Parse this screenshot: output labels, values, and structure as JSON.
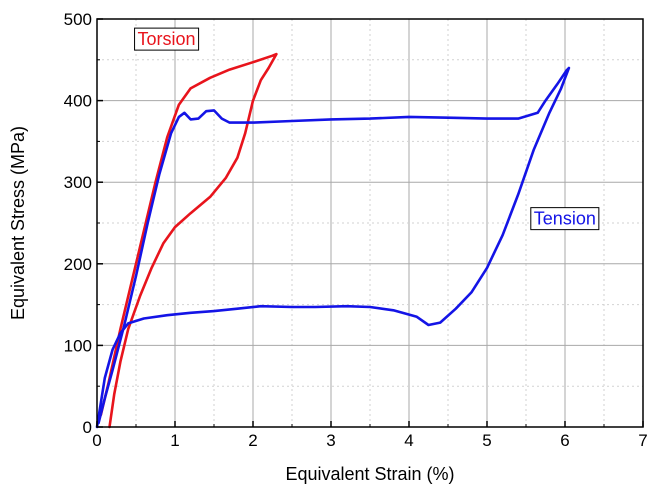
{
  "chart_data": {
    "type": "line",
    "title": "",
    "xlabel": "Equivalent Strain (%)",
    "ylabel": "Equivalent Stress (MPa)",
    "xlim": [
      0,
      7
    ],
    "ylim": [
      0,
      500
    ],
    "x_ticks": [
      0,
      1,
      2,
      3,
      4,
      5,
      6,
      7
    ],
    "y_ticks": [
      0,
      100,
      200,
      300,
      400,
      500
    ],
    "x_tick_labels": [
      "0",
      "1",
      "2",
      "3",
      "4",
      "5",
      "6",
      "7"
    ],
    "y_tick_labels": [
      "0",
      "100",
      "200",
      "300",
      "400",
      "500"
    ],
    "grid": true,
    "series": [
      {
        "name": "Torsion",
        "color": "#e8141c",
        "label_box": {
          "x": 0.52,
          "y": 468
        },
        "points": [
          [
            0.16,
            0
          ],
          [
            0.22,
            40
          ],
          [
            0.3,
            80
          ],
          [
            0.4,
            120
          ],
          [
            0.55,
            160
          ],
          [
            0.7,
            195
          ],
          [
            0.85,
            225
          ],
          [
            1.0,
            245
          ],
          [
            1.2,
            262
          ],
          [
            1.45,
            282
          ],
          [
            1.65,
            305
          ],
          [
            1.8,
            330
          ],
          [
            1.9,
            360
          ],
          [
            2.0,
            400
          ],
          [
            2.1,
            425
          ],
          [
            2.2,
            440
          ],
          [
            2.3,
            457
          ],
          [
            2.25,
            455
          ],
          [
            2.0,
            447
          ],
          [
            1.7,
            438
          ],
          [
            1.45,
            428
          ],
          [
            1.2,
            415
          ],
          [
            1.05,
            395
          ],
          [
            0.9,
            355
          ],
          [
            0.75,
            300
          ],
          [
            0.6,
            240
          ],
          [
            0.45,
            180
          ],
          [
            0.3,
            120
          ],
          [
            0.15,
            55
          ],
          [
            0.05,
            15
          ]
        ]
      },
      {
        "name": "Tension",
        "color": "#1414e6",
        "label_box": {
          "x": 5.6,
          "y": 248
        },
        "points": [
          [
            0.0,
            0
          ],
          [
            0.05,
            30
          ],
          [
            0.1,
            60
          ],
          [
            0.2,
            95
          ],
          [
            0.3,
            115
          ],
          [
            0.4,
            127
          ],
          [
            0.6,
            133
          ],
          [
            0.9,
            137
          ],
          [
            1.2,
            140
          ],
          [
            1.5,
            142
          ],
          [
            1.8,
            145
          ],
          [
            2.1,
            148
          ],
          [
            2.5,
            147
          ],
          [
            2.8,
            147
          ],
          [
            3.2,
            148
          ],
          [
            3.5,
            147
          ],
          [
            3.8,
            143
          ],
          [
            4.1,
            135
          ],
          [
            4.25,
            125
          ],
          [
            4.4,
            128
          ],
          [
            4.6,
            145
          ],
          [
            4.8,
            165
          ],
          [
            5.0,
            195
          ],
          [
            5.2,
            235
          ],
          [
            5.4,
            285
          ],
          [
            5.6,
            340
          ],
          [
            5.8,
            385
          ],
          [
            5.95,
            415
          ],
          [
            6.05,
            440
          ],
          [
            6.02,
            437
          ],
          [
            5.9,
            420
          ],
          [
            5.75,
            400
          ],
          [
            5.65,
            385
          ],
          [
            5.4,
            378
          ],
          [
            5.0,
            378
          ],
          [
            4.5,
            379
          ],
          [
            4.0,
            380
          ],
          [
            3.5,
            378
          ],
          [
            3.0,
            377
          ],
          [
            2.5,
            375
          ],
          [
            2.0,
            373
          ],
          [
            1.7,
            373
          ],
          [
            1.6,
            378
          ],
          [
            1.5,
            388
          ],
          [
            1.4,
            387
          ],
          [
            1.3,
            378
          ],
          [
            1.2,
            377
          ],
          [
            1.12,
            385
          ],
          [
            1.05,
            380
          ],
          [
            0.95,
            360
          ],
          [
            0.8,
            310
          ],
          [
            0.65,
            250
          ],
          [
            0.5,
            185
          ],
          [
            0.35,
            125
          ],
          [
            0.2,
            70
          ],
          [
            0.1,
            35
          ],
          [
            0.02,
            5
          ]
        ]
      }
    ]
  }
}
